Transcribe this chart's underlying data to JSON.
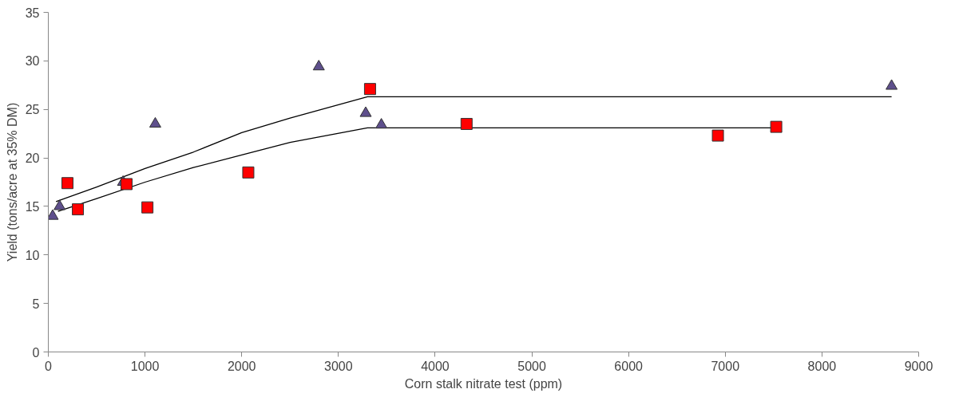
{
  "chart_data": {
    "type": "scatter",
    "xlabel": "Corn stalk nitrate test (ppm)",
    "ylabel": "Yield (tons/acre at 35% DM)",
    "xlim": [
      0,
      9000
    ],
    "xticks": [
      0,
      1000,
      2000,
      3000,
      4000,
      5000,
      6000,
      7000,
      8000,
      9000
    ],
    "ylim": [
      0,
      35
    ],
    "yticks": [
      0,
      5,
      10,
      15,
      20,
      25,
      30,
      35
    ],
    "grid": false,
    "series": [
      {
        "type": "line",
        "color": "#000000",
        "marker": "none",
        "x": [
          80,
          500,
          1000,
          1500,
          2000,
          2500,
          3300,
          8720
        ],
        "values": [
          15.5,
          17.0,
          18.9,
          20.6,
          22.6,
          24.1,
          26.3,
          26.3
        ]
      },
      {
        "type": "line",
        "color": "#000000",
        "marker": "none",
        "x": [
          100,
          500,
          1000,
          1500,
          2000,
          2500,
          3300,
          7527
        ],
        "values": [
          14.5,
          15.8,
          17.5,
          19.0,
          20.3,
          21.6,
          23.1,
          23.1
        ]
      },
      {
        "color": "#5e4f8c",
        "marker": "triangle",
        "x": [
          45,
          117,
          773,
          1106,
          2797,
          3282,
          3444,
          8720
        ],
        "values": [
          14.0,
          15.0,
          17.5,
          23.5,
          29.4,
          24.6,
          23.4,
          27.4
        ]
      },
      {
        "color": "#ff0000",
        "marker": "square",
        "x": [
          198,
          306,
          809,
          1025,
          2068,
          3327,
          4325,
          6924,
          7527
        ],
        "values": [
          17.4,
          14.7,
          17.3,
          14.9,
          18.5,
          27.1,
          23.5,
          22.3,
          23.2
        ]
      }
    ]
  }
}
